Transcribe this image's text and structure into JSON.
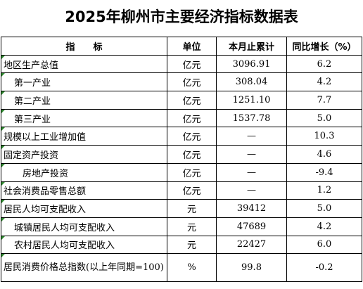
{
  "title": "2025年柳州市主要经济指标数据表",
  "headers": {
    "indicator": "指　　标",
    "unit": "单位",
    "monthly_cumulative": "本月止累计",
    "yoy_growth": "同比增长（%）"
  },
  "rows": [
    {
      "name": "地区生产总值",
      "unit": "亿元",
      "value": "3096.91",
      "yoy": "6.2"
    },
    {
      "name": "第一产业",
      "unit": "亿元",
      "value": "308.04",
      "yoy": "4.2"
    },
    {
      "name": "第二产业",
      "unit": "亿元",
      "value": "1251.10",
      "yoy": "7.7"
    },
    {
      "name": "第三产业",
      "unit": "亿元",
      "value": "1537.78",
      "yoy": "5.0"
    },
    {
      "name": "规模以上工业增加值",
      "unit": "亿元",
      "value": "—",
      "yoy": "10.3"
    },
    {
      "name": "固定资产投资",
      "unit": "亿元",
      "value": "—",
      "yoy": "4.6"
    },
    {
      "name": "房地产投资",
      "unit": "亿元",
      "value": "—",
      "yoy": "-9.4"
    },
    {
      "name": "社会消费品零售总额",
      "unit": "亿元",
      "value": "—",
      "yoy": "1.2"
    },
    {
      "name": "居民人均可支配收入",
      "unit": "元",
      "value": "39412",
      "yoy": "5.0"
    },
    {
      "name": "城镇居民人均可支配收入",
      "unit": "元",
      "value": "47689",
      "yoy": "4.2"
    },
    {
      "name": "农村居民人均可支配收入",
      "unit": "元",
      "value": "22427",
      "yoy": "6.0"
    },
    {
      "name": "居民消费价格总指数(以上年同期=100)",
      "unit": "%",
      "value": "99.8",
      "yoy": "-0.2"
    }
  ],
  "colors": {
    "cell_marker": "#2f8a2f"
  }
}
